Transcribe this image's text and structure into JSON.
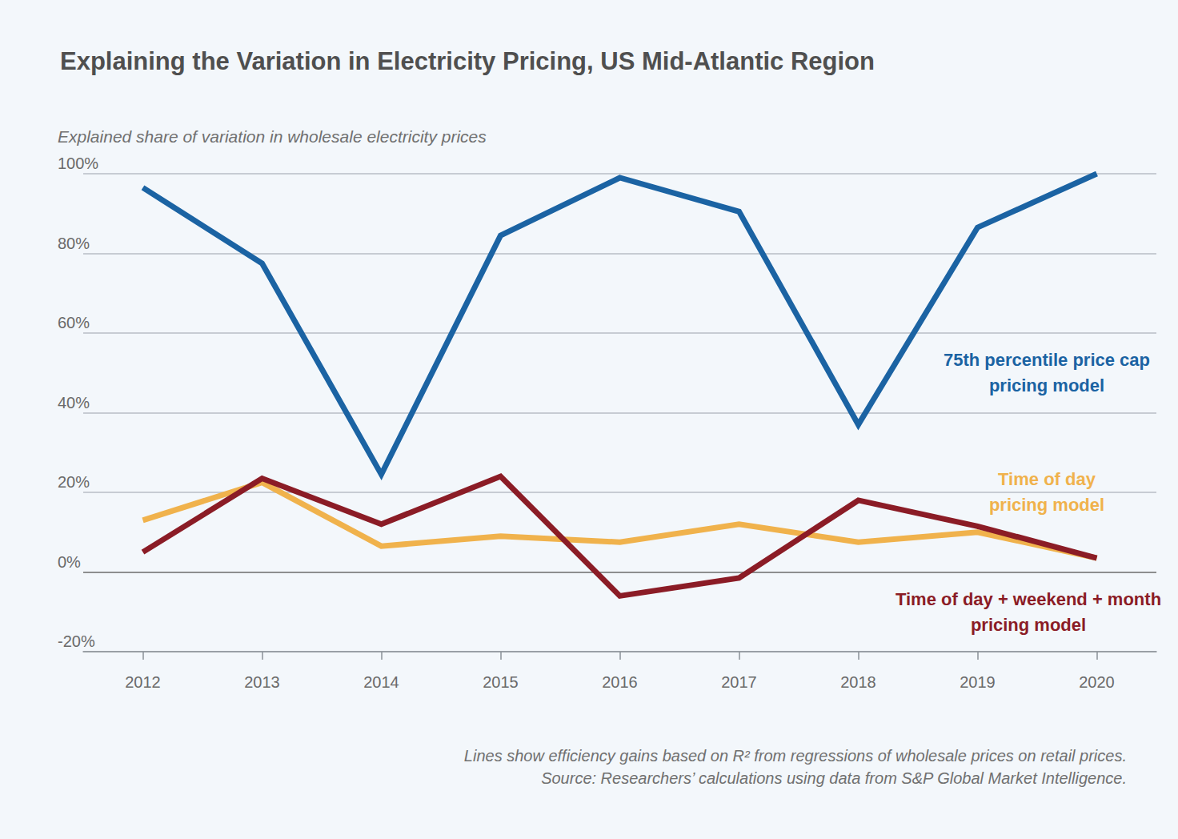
{
  "chart_data": {
    "type": "line",
    "title": "Explaining the Variation in Electricity Pricing, US Mid-Atlantic Region",
    "y_label": "Explained share of variation in wholesale electricity prices",
    "notes": [
      "Lines show efficiency gains based on R² from regressions of wholesale prices on retail prices.",
      "Source: Researchers’ calculations using data from S&P Global Market Intelligence."
    ],
    "categories": [
      "2012",
      "2013",
      "2014",
      "2015",
      "2016",
      "2017",
      "2018",
      "2019",
      "2020"
    ],
    "series": [
      {
        "name": "75th percentile price cap\npricing model",
        "color": "#1b63a3",
        "values": [
          96.5,
          77.5,
          24.5,
          84.5,
          99,
          90.5,
          37,
          86.5,
          100
        ]
      },
      {
        "name": "Time of day\npricing model",
        "color": "#f0b24c",
        "values": [
          13,
          22.5,
          6.5,
          9,
          7.5,
          12,
          7.5,
          10,
          3.5
        ]
      },
      {
        "name": "Time of day + weekend + month\npricing model",
        "color": "#8b1c26",
        "values": [
          5,
          23.5,
          12,
          24,
          -6,
          -1.5,
          18,
          11.5,
          3.5
        ]
      }
    ],
    "ylim": [
      -20,
      100
    ],
    "yticks": [
      {
        "value": -20,
        "label": "-20%"
      },
      {
        "value": 0,
        "label": "0%"
      },
      {
        "value": 20,
        "label": "20%"
      },
      {
        "value": 40,
        "label": "40%"
      },
      {
        "value": 60,
        "label": "60%"
      },
      {
        "value": 80,
        "label": "80%"
      },
      {
        "value": 100,
        "label": "100%"
      }
    ],
    "grid": true
  }
}
